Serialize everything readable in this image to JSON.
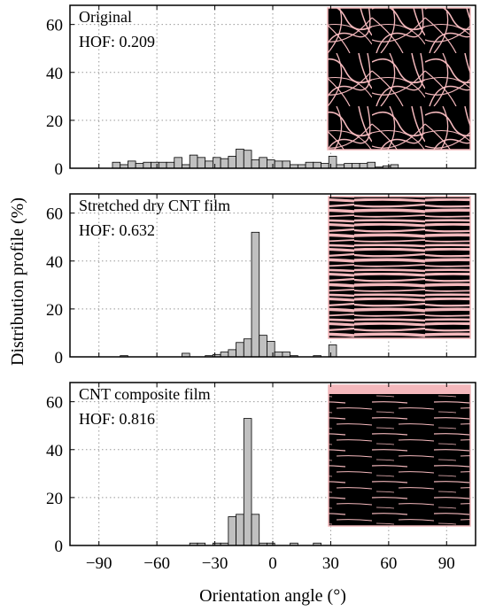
{
  "chart_data": {
    "type": "bar",
    "xlabel": "Orientation angle (°)",
    "ylabel": "Distribution profile (%)",
    "xlim": [
      -105,
      105
    ],
    "ylim": [
      0,
      68
    ],
    "x_ticks": [
      -90,
      -60,
      -30,
      0,
      30,
      60,
      90
    ],
    "x_tick_labels": [
      "−90",
      "−60",
      "−30",
      "0",
      "30",
      "60",
      "90"
    ],
    "y_ticks": [
      0,
      20,
      40,
      60
    ],
    "grid": true,
    "bar_color": "#c0c0c0",
    "inset_line_color": "#f4b8bc",
    "panels": [
      {
        "title": "Original",
        "annotation": "HOF: 0.209",
        "x": [
          -81,
          -77,
          -73,
          -69,
          -65,
          -61,
          -57,
          -53,
          -49,
          -45,
          -41,
          -37,
          -33,
          -29,
          -25,
          -21,
          -17,
          -13,
          -9,
          -5,
          -1,
          3,
          7,
          11,
          15,
          19,
          23,
          27,
          31,
          35,
          39,
          43,
          47,
          51,
          55,
          59,
          63,
          67,
          71,
          75,
          79,
          83
        ],
        "values": [
          2.5,
          1.5,
          3,
          2,
          2.5,
          2.5,
          2.5,
          2.5,
          4.5,
          1.5,
          5.5,
          4.5,
          3,
          4.5,
          4,
          5,
          8,
          7.5,
          3.5,
          4.5,
          3.5,
          3,
          3,
          1.5,
          1.5,
          2.5,
          2.5,
          2,
          5,
          1.5,
          2,
          2,
          2,
          2.5,
          0.5,
          1,
          1.5,
          0,
          0,
          0,
          0,
          0
        ]
      },
      {
        "title": "Stretched dry CNT film",
        "annotation": "HOF: 0.632",
        "x": [
          -81,
          -77,
          -73,
          -69,
          -65,
          -61,
          -57,
          -53,
          -49,
          -45,
          -41,
          -37,
          -33,
          -29,
          -25,
          -21,
          -17,
          -13,
          -9,
          -5,
          -1,
          3,
          7,
          11,
          15,
          19,
          23,
          27,
          31,
          35,
          39,
          43,
          47,
          51,
          55,
          59,
          63,
          67,
          71,
          75,
          79,
          83
        ],
        "values": [
          0,
          0.5,
          0,
          0,
          0,
          0,
          0,
          0,
          0,
          1.5,
          0,
          0,
          0.5,
          1,
          2,
          3,
          6,
          7.5,
          52,
          9,
          6.5,
          2,
          2,
          0.5,
          0,
          0,
          0.5,
          0,
          5,
          0,
          0,
          0,
          0,
          0,
          0,
          0,
          0,
          0,
          0,
          0,
          0,
          0
        ]
      },
      {
        "title": "CNT composite film",
        "annotation": "HOF: 0.816",
        "x": [
          -81,
          -77,
          -73,
          -69,
          -65,
          -61,
          -57,
          -53,
          -49,
          -45,
          -41,
          -37,
          -33,
          -29,
          -25,
          -21,
          -17,
          -13,
          -9,
          -5,
          -1,
          3,
          7,
          11,
          15,
          19,
          23,
          27,
          31,
          35,
          39,
          43,
          47,
          51,
          55,
          59,
          63,
          67,
          71,
          75,
          79,
          83
        ],
        "values": [
          0,
          0,
          0,
          0,
          0,
          0,
          0,
          0,
          0,
          0,
          1,
          1,
          0,
          1,
          1,
          12,
          13,
          53,
          13,
          1,
          1,
          0,
          0,
          1,
          0,
          0,
          1,
          0,
          0,
          0,
          0,
          0,
          0,
          0,
          0,
          0,
          0,
          0,
          0,
          0,
          0,
          0
        ]
      }
    ]
  }
}
